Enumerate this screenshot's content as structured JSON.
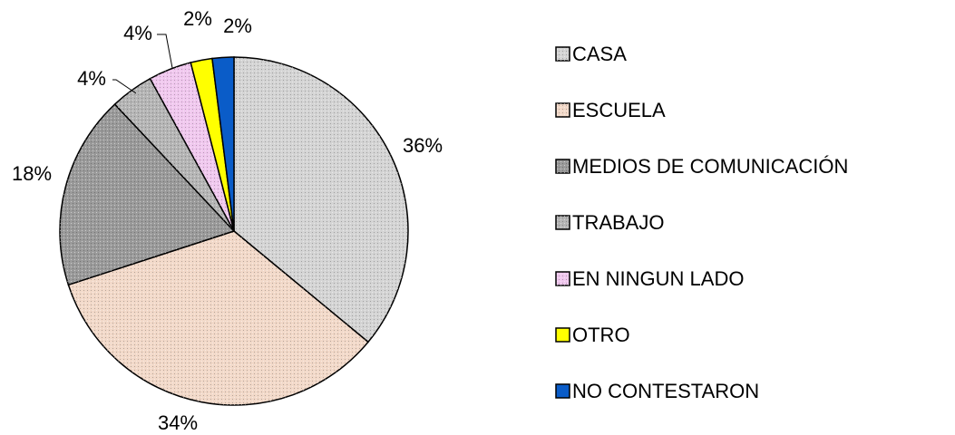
{
  "chart_data": {
    "type": "pie",
    "categories": [
      "CASA",
      "ESCUELA",
      "MEDIOS DE COMUNICACIÓN",
      "TRABAJO",
      "EN NINGUN LADO",
      "OTRO",
      "NO CONTESTARON"
    ],
    "values": [
      36,
      34,
      18,
      4,
      4,
      2,
      2
    ],
    "value_labels": [
      "36%",
      "34%",
      "18%",
      "4%",
      "4%",
      "2%",
      "2%"
    ],
    "colors": [
      "#d4d4d4",
      "#f2d9c9",
      "#9a9a9a",
      "#b5b5b5",
      "#f0c8ee",
      "#ffff00",
      "#0a5cc8"
    ],
    "legend": "right"
  }
}
